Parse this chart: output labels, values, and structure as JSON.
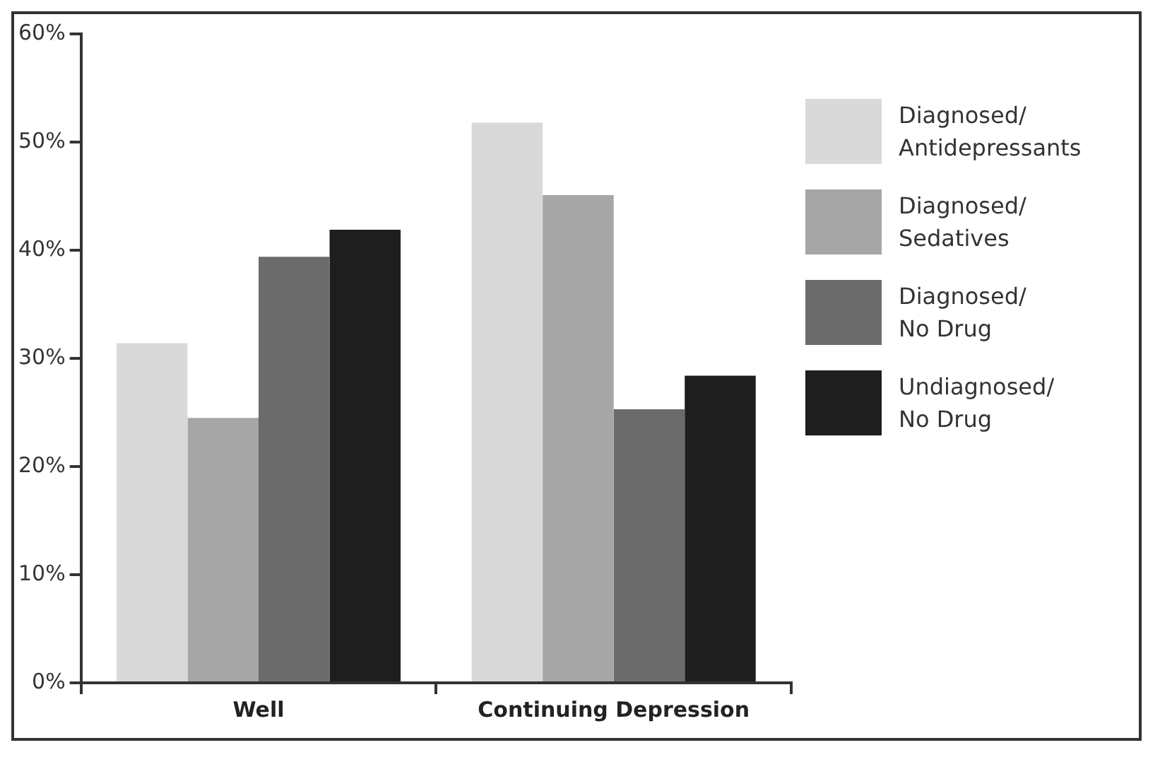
{
  "chart_data": {
    "type": "bar",
    "categories": [
      "Well",
      "Continuing Depression"
    ],
    "series": [
      {
        "name": "Diagnosed/Antidepressants",
        "color": "#d9d9d9",
        "values": [
          31.4,
          51.8
        ]
      },
      {
        "name": "Diagnosed/Sedatives",
        "color": "#a6a6a6",
        "values": [
          24.5,
          45.1
        ]
      },
      {
        "name": "Diagnosed/No Drug",
        "color": "#6b6b6b",
        "values": [
          39.4,
          25.3
        ]
      },
      {
        "name": "Undiagnosed/No Drug",
        "color": "#1e1e1e",
        "values": [
          41.9,
          28.4
        ]
      }
    ],
    "ylim": [
      0,
      60
    ],
    "yticks": [
      {
        "value": 0,
        "label": "0%"
      },
      {
        "value": 10,
        "label": "10%"
      },
      {
        "value": 20,
        "label": "20%"
      },
      {
        "value": 30,
        "label": "30%"
      },
      {
        "value": 40,
        "label": "40%"
      },
      {
        "value": 50,
        "label": "50%"
      },
      {
        "value": 60,
        "label": "60%"
      }
    ],
    "grid": false,
    "legend": "right"
  }
}
